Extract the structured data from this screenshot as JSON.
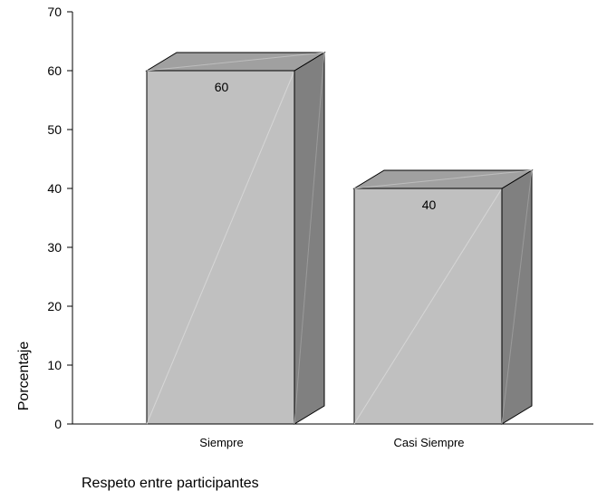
{
  "chart_data": {
    "type": "bar",
    "categories": [
      "Siempre",
      "Casi Siempre"
    ],
    "values": [
      60,
      40
    ],
    "data_labels": [
      "60",
      "40"
    ],
    "ylabel": "Porcentaje",
    "xlabel": "Respeto entre participantes",
    "ylim": [
      0,
      70
    ],
    "yticks": [
      0,
      10,
      20,
      30,
      40,
      50,
      60,
      70
    ],
    "grid": false,
    "legend": "none",
    "style": "3d-column",
    "colors": {
      "bar_front": "#c0c0c0",
      "bar_top": "#a0a0a0",
      "bar_side": "#808080",
      "outline": "#000000"
    }
  }
}
